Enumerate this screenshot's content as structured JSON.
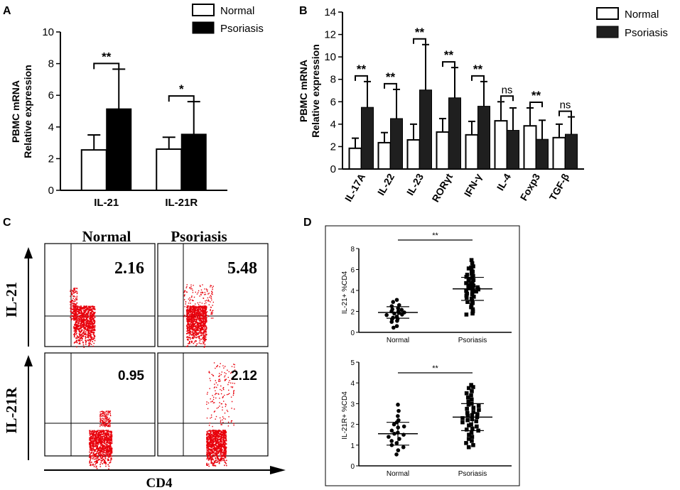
{
  "figure": {
    "panel_labels": [
      "A",
      "B",
      "C",
      "D"
    ]
  },
  "chart_data": [
    {
      "panel": "A",
      "type": "bar",
      "ylabel_lines": [
        "PBMC mRNA",
        "Relative expression"
      ],
      "categories": [
        "IL-21",
        "IL-21R"
      ],
      "ylim": [
        0,
        10
      ],
      "yticks": [
        "0",
        "2",
        "4",
        "6",
        "8",
        "10"
      ],
      "series": [
        {
          "name": "Normal",
          "values": [
            2.55,
            2.6
          ],
          "errors": [
            0.95,
            0.75
          ],
          "color": "#ffffff"
        },
        {
          "name": "Psoriasis",
          "values": [
            5.15,
            3.55
          ],
          "errors": [
            2.5,
            2.05
          ],
          "color": "#000000"
        }
      ],
      "significance": [
        "**",
        "*"
      ]
    },
    {
      "panel": "B",
      "type": "bar",
      "ylabel_lines": [
        "PBMC mRNA",
        "Relative expression"
      ],
      "categories": [
        "IL-17A",
        "IL-22",
        "IL-23",
        "RORγt",
        "IFN-γ",
        "IL-4",
        "Foxp3",
        "TGF-β"
      ],
      "ylim": [
        0,
        14
      ],
      "yticks": [
        "0",
        "2",
        "4",
        "6",
        "8",
        "10",
        "12",
        "14"
      ],
      "series": [
        {
          "name": "Normal",
          "values": [
            1.85,
            2.35,
            2.6,
            3.3,
            3.05,
            4.3,
            3.85,
            2.8
          ],
          "errors": [
            0.9,
            0.9,
            1.4,
            1.2,
            1.2,
            1.7,
            1.6,
            1.2
          ],
          "color": "#ffffff"
        },
        {
          "name": "Psoriasis",
          "values": [
            5.5,
            4.5,
            7.05,
            6.35,
            5.6,
            3.45,
            2.65,
            3.1
          ],
          "errors": [
            2.3,
            2.6,
            4.05,
            2.7,
            2.2,
            2.0,
            1.7,
            1.55
          ],
          "color": "#1f1f1f"
        }
      ],
      "significance": [
        "**",
        "**",
        "**",
        "**",
        "**",
        "ns",
        "**",
        "ns"
      ]
    },
    {
      "panel": "C",
      "type": "scatter",
      "column_headers": [
        "Normal",
        "Psoriasis"
      ],
      "row_labels": [
        "IL-21",
        "IL-21R"
      ],
      "xlabel": "CD4",
      "percentages": [
        [
          "2.16",
          "5.48"
        ],
        [
          "0.95",
          "2.12"
        ]
      ]
    },
    {
      "panel": "D",
      "type": "scatter",
      "plots": [
        {
          "ylabel": "IL-21+ %CD4",
          "ylim": [
            0,
            8
          ],
          "yticks": [
            "0",
            "2",
            "4",
            "6",
            "8"
          ],
          "categories": [
            "Normal",
            "Psoriasis"
          ],
          "significance": "**",
          "groups": [
            {
              "name": "Normal",
              "marker": "circle",
              "mean": 1.9,
              "sd": 0.55,
              "values": [
                3.1,
                2.9,
                2.6,
                2.5,
                2.3,
                2.2,
                2.15,
                2.0,
                2.0,
                1.9,
                1.85,
                1.8,
                1.7,
                1.65,
                1.5,
                1.4,
                1.3,
                1.25,
                1.1,
                1.0,
                0.6,
                0.45
              ]
            },
            {
              "name": "Psoriasis",
              "marker": "square",
              "mean": 4.15,
              "sd": 1.1,
              "values": [
                6.9,
                6.6,
                6.3,
                6.2,
                6.1,
                5.9,
                5.8,
                5.6,
                5.5,
                5.4,
                5.3,
                5.2,
                5.1,
                5.0,
                4.9,
                4.8,
                4.7,
                4.6,
                4.5,
                4.45,
                4.4,
                4.3,
                4.25,
                4.2,
                4.1,
                4.0,
                3.95,
                3.9,
                3.8,
                3.7,
                3.6,
                3.5,
                3.4,
                3.3,
                3.2,
                3.0,
                2.9,
                2.8,
                2.6,
                2.4,
                2.2,
                2.0,
                1.8,
                1.7
              ]
            }
          ]
        },
        {
          "ylabel": "IL-21R+ %CD4",
          "ylim": [
            0,
            5
          ],
          "yticks": [
            "0",
            "1",
            "2",
            "3",
            "4",
            "5"
          ],
          "categories": [
            "Normal",
            "Psoriasis"
          ],
          "significance": "**",
          "groups": [
            {
              "name": "Normal",
              "marker": "circle",
              "mean": 1.55,
              "sd": 0.55,
              "values": [
                2.95,
                2.65,
                2.4,
                2.2,
                2.1,
                2.0,
                1.9,
                1.85,
                1.7,
                1.6,
                1.55,
                1.5,
                1.4,
                1.3,
                1.2,
                1.1,
                1.0,
                0.9,
                0.75,
                0.55
              ]
            },
            {
              "name": "Psoriasis",
              "marker": "square",
              "mean": 2.35,
              "sd": 0.65,
              "values": [
                3.9,
                3.8,
                3.75,
                3.6,
                3.5,
                3.4,
                3.3,
                3.2,
                3.1,
                3.0,
                2.95,
                2.9,
                2.8,
                2.75,
                2.7,
                2.6,
                2.55,
                2.5,
                2.45,
                2.4,
                2.35,
                2.3,
                2.25,
                2.2,
                2.15,
                2.1,
                2.0,
                1.95,
                1.9,
                1.8,
                1.75,
                1.7,
                1.6,
                1.5,
                1.4,
                1.3,
                1.2,
                1.1,
                1.0,
                0.9
              ]
            }
          ]
        }
      ]
    }
  ]
}
